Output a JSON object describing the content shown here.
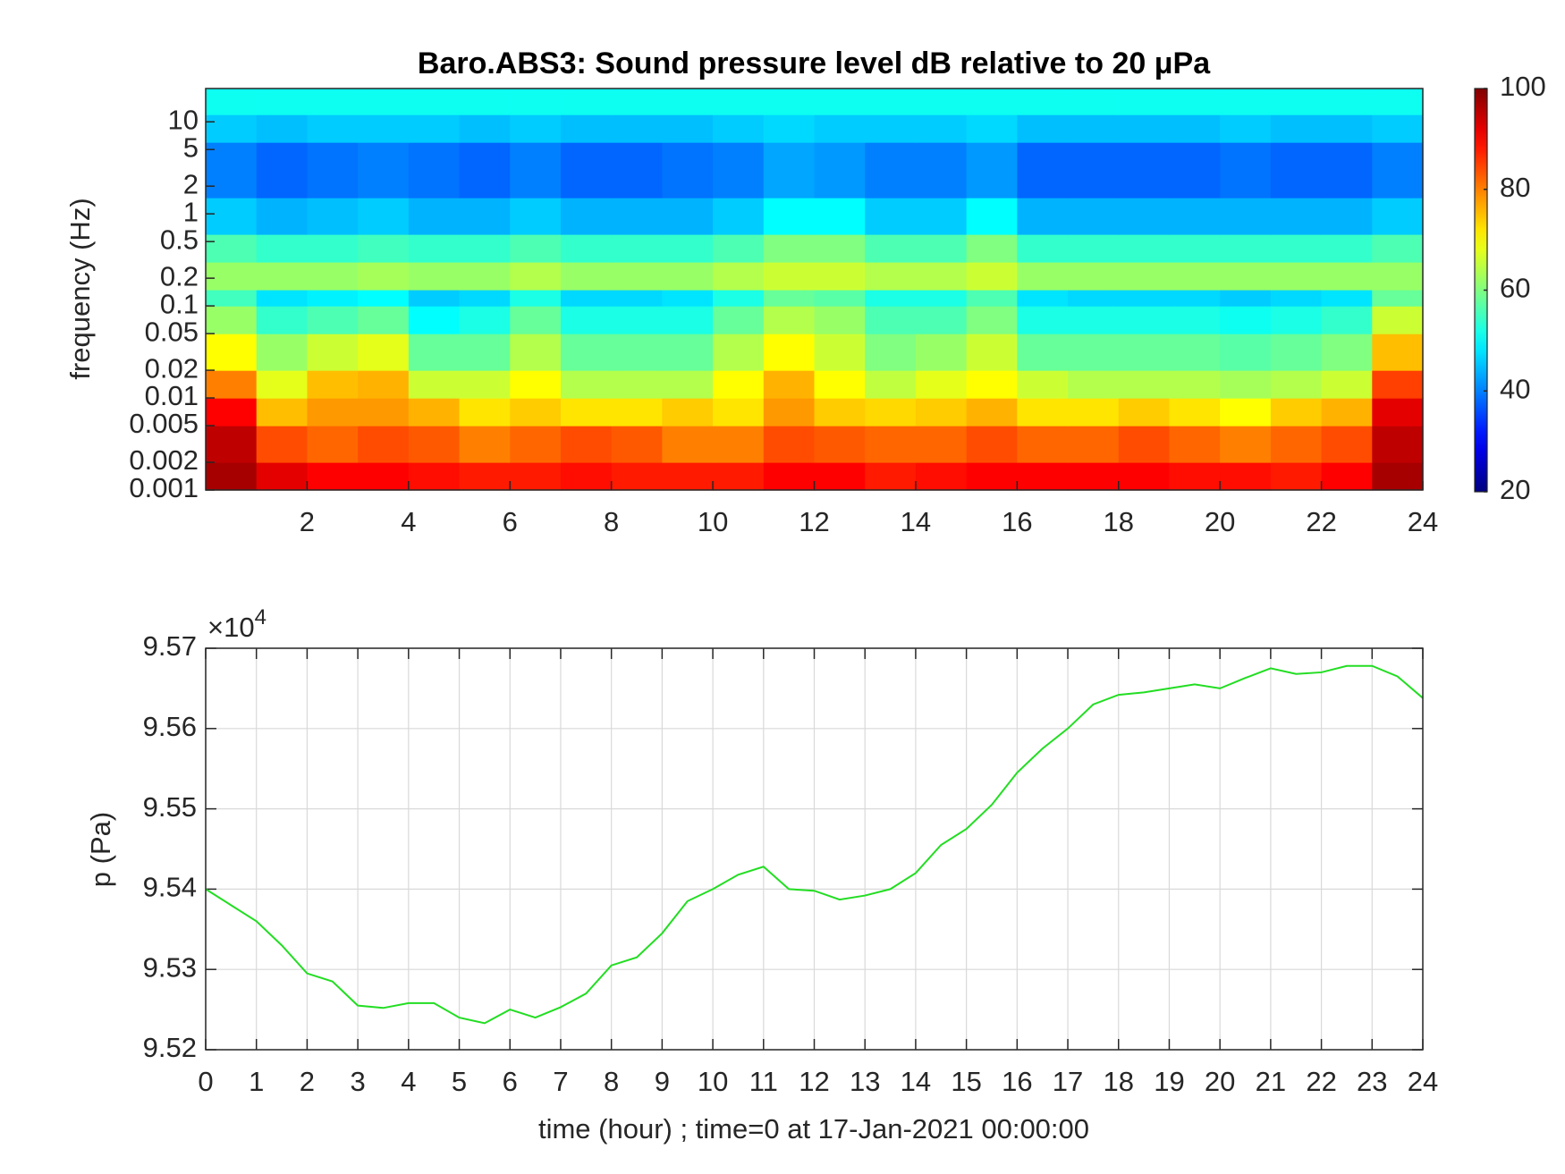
{
  "chart_data": [
    {
      "type": "heatmap",
      "title": "Baro.ABS3: Sound pressure level dB relative to 20 μPa",
      "y_label": "frequency (Hz)",
      "x_bins": [
        0,
        1,
        2,
        3,
        4,
        5,
        6,
        7,
        8,
        9,
        10,
        11,
        12,
        13,
        14,
        15,
        16,
        17,
        18,
        19,
        20,
        21,
        22,
        23,
        24
      ],
      "y_bins": [
        0.001,
        0.002,
        0.005,
        0.01,
        0.02,
        0.05,
        0.1,
        0.15,
        0.3,
        0.6,
        1.5,
        6,
        12,
        23
      ],
      "z": [
        [
          97,
          92,
          90,
          90,
          89,
          88,
          88,
          89,
          88,
          88,
          88,
          90,
          90,
          88,
          89,
          90,
          90,
          90,
          90,
          89,
          89,
          88,
          90,
          97
        ],
        [
          95,
          84,
          82,
          84,
          83,
          80,
          82,
          84,
          83,
          80,
          80,
          84,
          83,
          82,
          82,
          84,
          82,
          82,
          84,
          82,
          80,
          82,
          84,
          95
        ],
        [
          90,
          75,
          78,
          78,
          76,
          72,
          74,
          72,
          72,
          74,
          72,
          78,
          74,
          73,
          74,
          76,
          72,
          72,
          74,
          72,
          70,
          74,
          76,
          92
        ],
        [
          80,
          68,
          75,
          76,
          66,
          66,
          70,
          64,
          64,
          64,
          70,
          76,
          70,
          65,
          68,
          70,
          66,
          64,
          64,
          64,
          63,
          64,
          66,
          85
        ],
        [
          70,
          62,
          66,
          68,
          58,
          58,
          64,
          58,
          58,
          58,
          64,
          70,
          66,
          60,
          62,
          66,
          58,
          58,
          58,
          58,
          57,
          58,
          60,
          75
        ],
        [
          62,
          54,
          56,
          58,
          50,
          52,
          58,
          52,
          52,
          52,
          58,
          64,
          62,
          56,
          56,
          60,
          52,
          52,
          52,
          52,
          51,
          52,
          54,
          66
        ],
        [
          55,
          48,
          49,
          50,
          46,
          47,
          52,
          47,
          47,
          48,
          52,
          58,
          57,
          52,
          52,
          56,
          48,
          47,
          47,
          47,
          46,
          47,
          48,
          58
        ],
        [
          62,
          62,
          62,
          63,
          62,
          62,
          64,
          62,
          62,
          62,
          64,
          66,
          66,
          64,
          64,
          66,
          62,
          62,
          62,
          62,
          62,
          62,
          62,
          62
        ],
        [
          56,
          54,
          54,
          55,
          54,
          54,
          56,
          54,
          54,
          54,
          56,
          60,
          60,
          56,
          56,
          60,
          54,
          54,
          54,
          54,
          54,
          54,
          54,
          56
        ],
        [
          46,
          44,
          45,
          46,
          44,
          44,
          46,
          44,
          44,
          44,
          46,
          50,
          50,
          46,
          46,
          50,
          44,
          44,
          44,
          44,
          44,
          44,
          44,
          46
        ],
        [
          40,
          38,
          39,
          40,
          39,
          38,
          40,
          38,
          38,
          39,
          40,
          43,
          42,
          40,
          40,
          42,
          38,
          38,
          38,
          38,
          39,
          38,
          38,
          40
        ],
        [
          46,
          45,
          46,
          46,
          46,
          45,
          46,
          45,
          45,
          45,
          46,
          47,
          46,
          46,
          46,
          47,
          45,
          45,
          45,
          45,
          46,
          45,
          45,
          46
        ],
        [
          51,
          51,
          51,
          51,
          51,
          51,
          51,
          51,
          51,
          51,
          51,
          51,
          51,
          51,
          51,
          51,
          51,
          51,
          51,
          51,
          51,
          51,
          51,
          51
        ]
      ],
      "xlim": [
        0,
        24
      ],
      "xticks": [
        2,
        4,
        6,
        8,
        10,
        12,
        14,
        16,
        18,
        20,
        22,
        24
      ],
      "ylim": [
        0.001,
        23
      ],
      "log_y": true,
      "yticks": [
        0.001,
        0.002,
        0.005,
        0.01,
        0.02,
        0.05,
        0.1,
        0.2,
        0.5,
        1,
        2,
        5,
        10
      ],
      "colormap": "jet",
      "clim": [
        20,
        100
      ],
      "cticks": [
        20,
        40,
        60,
        80,
        100
      ]
    },
    {
      "type": "line",
      "x_label": "time (hour) ; time=0 at 17-Jan-2021 00:00:00",
      "y_label": "p (Pa)",
      "y_multiplier": "×10",
      "y_multiplier_exp": "4",
      "x": [
        0,
        0.5,
        1,
        1.5,
        2,
        2.5,
        3,
        3.5,
        4,
        4.5,
        5,
        5.5,
        6,
        6.5,
        7,
        7.5,
        8,
        8.5,
        9,
        9.5,
        10,
        10.5,
        11,
        11.5,
        12,
        12.5,
        13,
        13.5,
        14,
        14.5,
        15,
        15.5,
        16,
        16.5,
        17,
        17.5,
        18,
        18.5,
        19,
        19.5,
        20,
        20.5,
        21,
        21.5,
        22,
        22.5,
        23,
        23.5,
        24
      ],
      "series": [
        {
          "color": "#22dd22",
          "values": [
            95400,
            95380,
            95360,
            95330,
            95295,
            95285,
            95255,
            95252,
            95258,
            95258,
            95240,
            95233,
            95250,
            95240,
            95253,
            95270,
            95305,
            95315,
            95345,
            95385,
            95400,
            95418,
            95428,
            95400,
            95398,
            95387,
            95392,
            95400,
            95420,
            95455,
            95475,
            95505,
            95545,
            95575,
            95600,
            95630,
            95642,
            95645,
            95650,
            95655,
            95650,
            95663,
            95675,
            95668,
            95670,
            95678,
            95678,
            95665,
            95638
          ]
        }
      ],
      "xlim": [
        0,
        24
      ],
      "xticks": [
        0,
        1,
        2,
        3,
        4,
        5,
        6,
        7,
        8,
        9,
        10,
        11,
        12,
        13,
        14,
        15,
        16,
        17,
        18,
        19,
        20,
        21,
        22,
        23,
        24
      ],
      "ylim": [
        95200,
        95700
      ],
      "yticks": [
        {
          "value": 95200,
          "label": "9.52"
        },
        {
          "value": 95300,
          "label": "9.53"
        },
        {
          "value": 95400,
          "label": "9.54"
        },
        {
          "value": 95500,
          "label": "9.55"
        },
        {
          "value": 95600,
          "label": "9.56"
        },
        {
          "value": 95700,
          "label": "9.57"
        }
      ],
      "grid": true
    }
  ]
}
